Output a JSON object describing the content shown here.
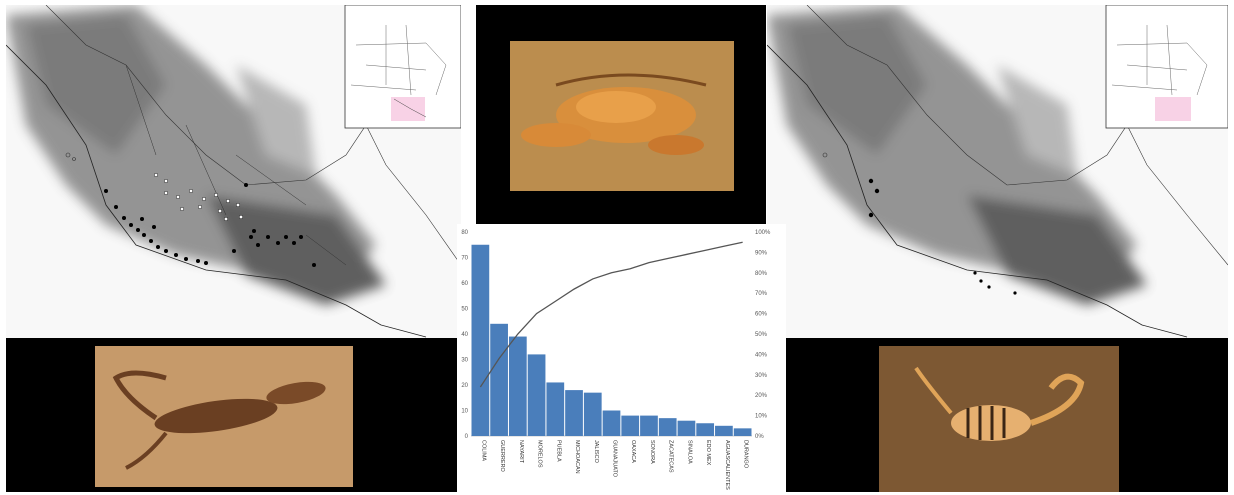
{
  "chart_data": {
    "type": "bar",
    "categories": [
      "COLIMA",
      "GUERRERO",
      "NAYARIT",
      "MORELOS",
      "PUEBLA",
      "MICHOACAN",
      "JALISCO",
      "GUANAJUATO",
      "OAXACA",
      "SONORA",
      "ZACATECAS",
      "SINALOA",
      "EDO MEX",
      "AGUASCALIENTES",
      "DURANGO"
    ],
    "series": [
      {
        "type": "bar",
        "values": [
          75,
          44,
          39,
          32,
          21,
          18,
          17,
          10,
          8,
          8,
          7,
          6,
          5,
          4,
          3
        ]
      },
      {
        "type": "line",
        "axis": "right",
        "values": [
          24,
          38,
          50,
          60,
          66,
          72,
          77,
          80,
          82,
          85,
          87,
          89,
          91,
          93,
          95
        ]
      }
    ],
    "title": "",
    "xlabel": "",
    "ylabel": "",
    "ylim": [
      0,
      80
    ],
    "y_ticks": [
      "0",
      "10",
      "20",
      "30",
      "40",
      "50",
      "60",
      "70",
      "80"
    ],
    "y2lim": [
      0,
      100
    ],
    "y2_ticks": [
      "0%",
      "10%",
      "20%",
      "30%",
      "40%",
      "50%",
      "60%",
      "70%",
      "80%",
      "90%",
      "100%"
    ],
    "grid": false,
    "colors": {
      "bar": "#4a7ebb",
      "line": "#555555"
    }
  },
  "photos": {
    "top_center": "scorpion-photo-dorsal-dark-background",
    "bottom_left": "scorpion-photo-on-rock",
    "bottom_right": "scorpion-photo-striped-on-sand"
  },
  "maps": {
    "left": "mexico-relief-map-with-records",
    "right": "mexico-relief-map-with-records"
  }
}
